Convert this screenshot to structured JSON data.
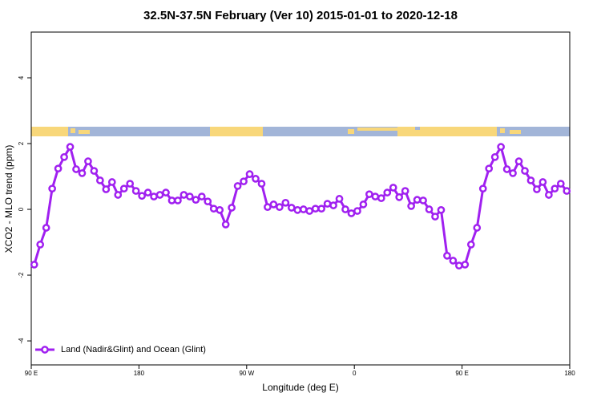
{
  "chart_data": {
    "type": "line",
    "title": "32.5N-37.5N February (Ver 10)   2015-01-01 to 2020-12-18",
    "xlabel": "Longitude (deg E)",
    "ylabel": "XCO2 - MLO trend (ppm)",
    "xlim": [
      90,
      540
    ],
    "ylim": [
      -4.73,
      5.39
    ],
    "xticks": [
      {
        "value": 90,
        "label": "90 E"
      },
      180,
      {
        "value": 270,
        "label": "90 W"
      },
      {
        "value": 360,
        "label": "0"
      },
      {
        "value": 450,
        "label": "90 E"
      },
      {
        "value": 540,
        "label": "180"
      }
    ],
    "yticks": [
      -4,
      -2,
      0,
      2,
      4
    ],
    "legend": "bottom-left",
    "x": [
      92.5,
      97.5,
      102.5,
      107.5,
      112.5,
      117.5,
      122.5,
      127.5,
      132.5,
      137.5,
      142.5,
      147.5,
      152.5,
      157.5,
      162.5,
      167.5,
      172.5,
      177.5,
      182.5,
      187.5,
      192.5,
      197.5,
      202.5,
      207.5,
      212.5,
      217.5,
      222.5,
      227.5,
      232.5,
      237.5,
      242.5,
      247.5,
      252.5,
      257.5,
      262.5,
      267.5,
      272.5,
      277.5,
      282.5,
      287.5,
      292.5,
      297.5,
      302.5,
      307.5,
      312.5,
      317.5,
      322.5,
      327.5,
      332.5,
      337.5,
      342.5,
      347.5,
      352.5,
      357.5,
      362.5,
      367.5,
      372.5,
      377.5,
      382.5,
      387.5,
      392.5,
      397.5,
      402.5,
      407.5,
      412.5,
      417.5,
      422.5,
      427.5,
      432.5,
      437.5,
      442.5,
      447.5,
      452.5,
      457.5,
      462.5,
      467.5,
      472.5,
      477.5,
      482.5,
      487.5,
      492.5,
      497.5,
      502.5,
      507.5,
      512.5,
      517.5,
      522.5,
      527.5,
      532.5,
      537.5
    ],
    "series": [
      {
        "name": "Land (Nadir&Glint) and Ocean (Glint)",
        "color": "#a020f0",
        "values": [
          -1.68,
          -1.07,
          -0.56,
          0.63,
          1.24,
          1.59,
          1.9,
          1.22,
          1.1,
          1.46,
          1.17,
          0.88,
          0.61,
          0.83,
          0.44,
          0.63,
          0.78,
          0.56,
          0.41,
          0.51,
          0.39,
          0.44,
          0.51,
          0.27,
          0.27,
          0.44,
          0.39,
          0.29,
          0.39,
          0.24,
          0.02,
          -0.02,
          -0.46,
          0.05,
          0.71,
          0.85,
          1.07,
          0.93,
          0.78,
          0.07,
          0.15,
          0.07,
          0.2,
          0.05,
          -0.02,
          0,
          -0.05,
          0.02,
          0.02,
          0.17,
          0.12,
          0.32,
          0,
          -0.12,
          -0.05,
          0.15,
          0.46,
          0.39,
          0.34,
          0.51,
          0.66,
          0.37,
          0.56,
          0.1,
          0.29,
          0.27,
          0,
          -0.22,
          -0.02,
          -1.41,
          -1.56,
          -1.71,
          -1.68,
          -1.07,
          -0.56,
          0.63,
          1.24,
          1.59,
          1.9,
          1.22,
          1.1,
          1.46,
          1.17,
          0.88,
          0.61,
          0.83,
          0.44,
          0.63,
          0.78,
          0.56
        ]
      }
    ]
  }
}
